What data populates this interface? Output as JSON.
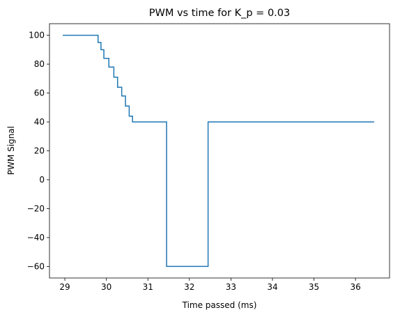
{
  "chart_data": {
    "type": "line",
    "title": "PWM vs time for K_p = 0.03",
    "xlabel": "Time passed (ms)",
    "ylabel": "PWM Signal",
    "xlim": [
      28.63,
      36.82
    ],
    "ylim": [
      -68,
      108
    ],
    "xticks": [
      29,
      30,
      31,
      32,
      33,
      34,
      35,
      36
    ],
    "yticks": [
      -60,
      -40,
      -20,
      0,
      20,
      40,
      60,
      80,
      100
    ],
    "grid": false,
    "line_color": "#1f77b4",
    "series": [
      {
        "step": "post",
        "points": [
          [
            28.95,
            100
          ],
          [
            29.8,
            100
          ],
          [
            29.8,
            95
          ],
          [
            29.87,
            95
          ],
          [
            29.87,
            90
          ],
          [
            29.94,
            90
          ],
          [
            29.94,
            84
          ],
          [
            30.06,
            84
          ],
          [
            30.06,
            78
          ],
          [
            30.18,
            78
          ],
          [
            30.18,
            71
          ],
          [
            30.27,
            71
          ],
          [
            30.27,
            64
          ],
          [
            30.37,
            64
          ],
          [
            30.37,
            58
          ],
          [
            30.46,
            58
          ],
          [
            30.46,
            51
          ],
          [
            30.55,
            51
          ],
          [
            30.55,
            44
          ],
          [
            30.63,
            44
          ],
          [
            30.63,
            40
          ],
          [
            31.45,
            40
          ],
          [
            31.45,
            -60
          ],
          [
            32.45,
            -60
          ],
          [
            32.45,
            40
          ],
          [
            36.45,
            40
          ]
        ]
      }
    ]
  }
}
